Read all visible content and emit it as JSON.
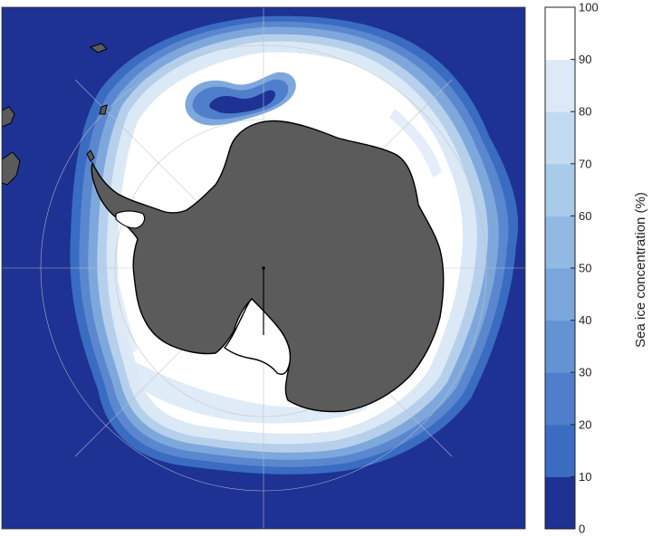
{
  "colorbar": {
    "label": "Sea ice concentration (%)",
    "ticks": [
      "0",
      "10",
      "20",
      "30",
      "40",
      "50",
      "60",
      "70",
      "80",
      "90",
      "100"
    ],
    "colors": [
      "#1e3294",
      "#1e3294",
      "#3a6cc2",
      "#4f7fcb",
      "#6493d3",
      "#7aa6db",
      "#92b9e3",
      "#a9cbea",
      "#c2dbf1",
      "#dde9f7",
      "#ffffff"
    ]
  },
  "map": {
    "projection": "south-polar-stereographic",
    "ocean_color": "#1e3294",
    "land_color": "#5b5b5b",
    "coastline_color": "#000000",
    "graticule": true
  }
}
